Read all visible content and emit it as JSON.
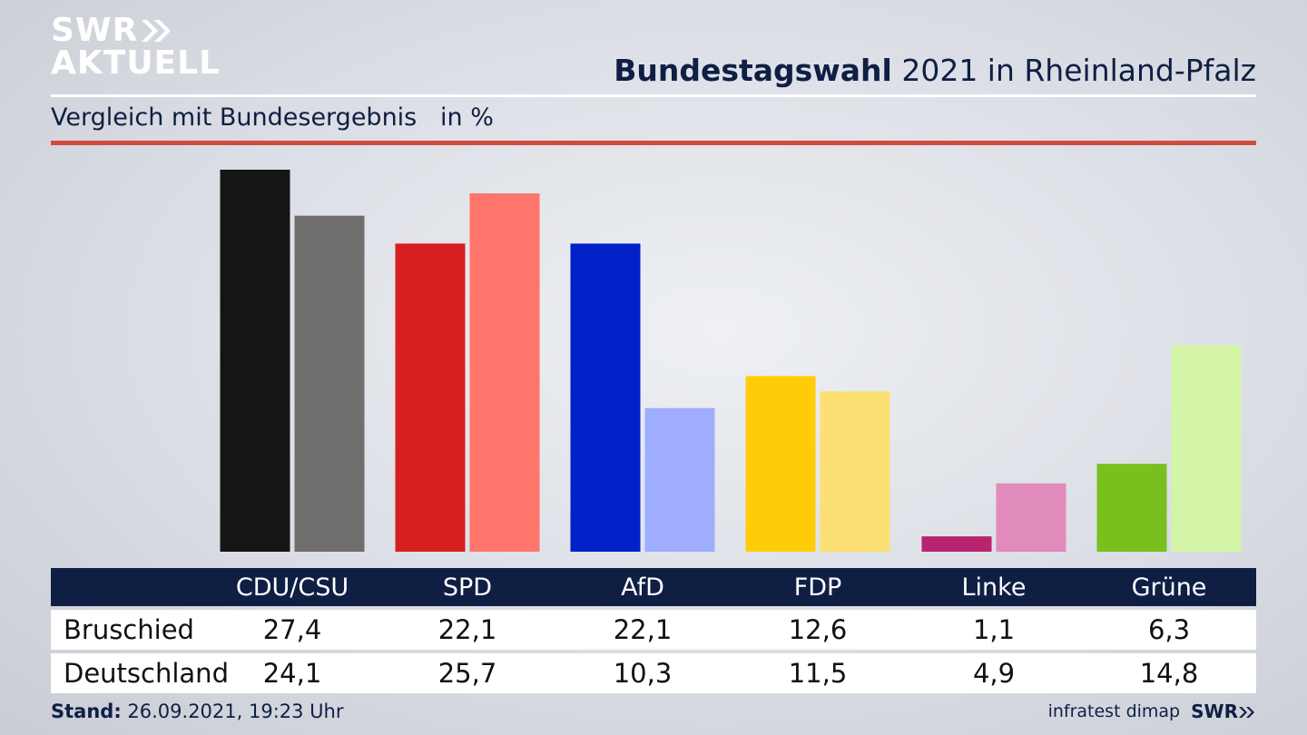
{
  "brand": {
    "logo_line1": "SWR",
    "logo_line2": "AKTUELL",
    "footer_logo": "SWR"
  },
  "header": {
    "title_bold": "Bundestagswahl",
    "title_rest": " 2021 in Rheinland-Pfalz",
    "subtitle": "Vergleich mit Bundesergebnis   in %"
  },
  "footer": {
    "stand_label": "Stand:",
    "stand_value": " 26.09.2021, 19:23 Uhr",
    "source": "infratest dimap"
  },
  "table": {
    "rows": [
      {
        "label": "Bruschied",
        "values": [
          "27,4",
          "22,1",
          "22,1",
          "12,6",
          "1,1",
          "6,3"
        ]
      },
      {
        "label": "Deutschland",
        "values": [
          "24,1",
          "25,7",
          "10,3",
          "11,5",
          "4,9",
          "14,8"
        ]
      }
    ]
  },
  "chart_data": {
    "type": "bar",
    "categories": [
      "CDU/CSU",
      "SPD",
      "AfD",
      "FDP",
      "Linke",
      "Grüne"
    ],
    "series": [
      {
        "name": "Bruschied",
        "values": [
          27.4,
          22.1,
          22.1,
          12.6,
          1.1,
          6.3
        ],
        "colors": [
          "#151515",
          "#d71f1f",
          "#0021c8",
          "#ffcc0a",
          "#b8246e",
          "#79bf1e"
        ]
      },
      {
        "name": "Deutschland",
        "values": [
          24.1,
          25.7,
          10.3,
          11.5,
          4.9,
          14.8
        ],
        "colors": [
          "#706f6d",
          "#ff746b",
          "#9fadff",
          "#fde073",
          "#e08bbb",
          "#d4f5a8"
        ]
      }
    ],
    "ylim": [
      0,
      27.4
    ],
    "grid": false,
    "legend": "none"
  }
}
